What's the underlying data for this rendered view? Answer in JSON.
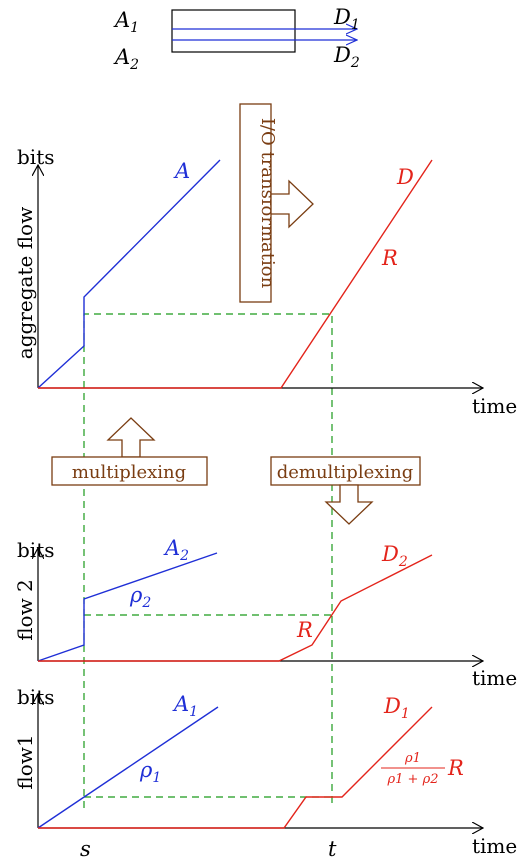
{
  "top_diagram": {
    "inputs": [
      {
        "name": "A",
        "sub": "1"
      },
      {
        "name": "A",
        "sub": "2"
      }
    ],
    "outputs": [
      {
        "name": "D",
        "sub": "1"
      },
      {
        "name": "D",
        "sub": "2"
      }
    ]
  },
  "labels": {
    "bits": "bits",
    "time": "time",
    "s": "s",
    "t": "t",
    "aggregate_axis": "aggregate flow",
    "flow2_axis": "flow 2",
    "flow1_axis": "flow1"
  },
  "boxes": {
    "io_transformation": "I/O transformation",
    "multiplexing": "multiplexing",
    "demultiplexing": "demultiplexing"
  },
  "aggregate": {
    "arrival": {
      "name": "A",
      "sub": ""
    },
    "departure": {
      "name": "D",
      "sub": ""
    },
    "rate": {
      "name": "R",
      "sub": ""
    }
  },
  "flow2": {
    "arrival": {
      "name": "A",
      "sub": "2"
    },
    "departure": {
      "name": "D",
      "sub": "2"
    },
    "slope": {
      "name": "ρ",
      "sub": "2"
    },
    "rate": {
      "name": "R",
      "sub": ""
    }
  },
  "flow1": {
    "arrival": {
      "name": "A",
      "sub": "1"
    },
    "departure": {
      "name": "D",
      "sub": "1"
    },
    "slope": {
      "name": "ρ",
      "sub": "1"
    },
    "rate_num": "ρ1",
    "rate_den": "ρ1 + ρ2",
    "rate_R": "R"
  },
  "colors": {
    "arrival": "#1f2fd6",
    "departure": "#e3241b",
    "guide": "#1a9a1a",
    "box_border": "#7a3d12"
  }
}
